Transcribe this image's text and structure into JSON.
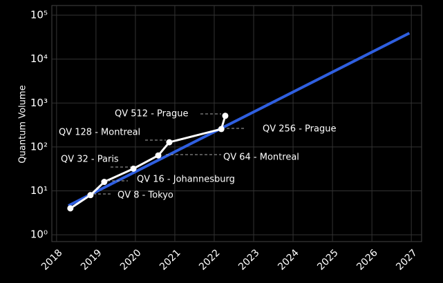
{
  "chart_data": {
    "type": "line",
    "ylabel": "Quantum Volume",
    "log_y": true,
    "grid": true,
    "xlim": [
      2017.88,
      2027.26
    ],
    "ylim": [
      0.7,
      166000
    ],
    "xticks": [
      2018,
      2019,
      2020,
      2021,
      2022,
      2023,
      2024,
      2025,
      2026,
      2027
    ],
    "yticks": [
      {
        "value": 1,
        "label": "10⁰"
      },
      {
        "value": 10,
        "label": "10¹"
      },
      {
        "value": 100,
        "label": "10²"
      },
      {
        "value": 1000,
        "label": "10³"
      },
      {
        "value": 10000,
        "label": "10⁴"
      },
      {
        "value": 100000,
        "label": "10⁵"
      }
    ],
    "series": [
      {
        "color": "#2f5fe0",
        "x": [
          2018.3,
          2026.95
        ],
        "values": [
          4.6,
          39000
        ]
      },
      {
        "color": "#ffffff",
        "x": [
          2018.35,
          2018.86,
          2019.21,
          2019.95,
          2020.58,
          2020.86,
          2022.18,
          2022.28
        ],
        "values": [
          4,
          8,
          16,
          32,
          64,
          128,
          256,
          512
        ]
      }
    ],
    "annotations": [
      "QV 512 - Prague",
      "QV 256 - Prague",
      "QV 128 - Montreal",
      "QV 64 - Montreal",
      "QV 32 - Paris",
      "QV 16 - Johannesburg",
      "QV 8 - Tokyo"
    ]
  }
}
